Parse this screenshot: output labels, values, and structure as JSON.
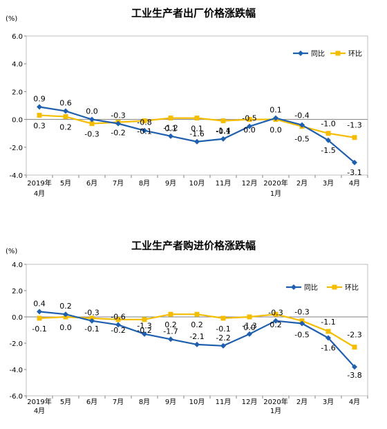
{
  "chart_data": [
    {
      "type": "line",
      "title": "工业生产者出厂价格涨跌幅",
      "unit": "(%)",
      "ylim": [
        -4.0,
        6.0
      ],
      "yticks": [
        "6.0",
        "4.0",
        "2.0",
        "0.0",
        "-2.0",
        "-4.0"
      ],
      "categories": [
        [
          "2019年",
          "4月"
        ],
        [
          "5月"
        ],
        [
          "6月"
        ],
        [
          "7月"
        ],
        [
          "8月"
        ],
        [
          "9月"
        ],
        [
          "10月"
        ],
        [
          "11月"
        ],
        [
          "12月"
        ],
        [
          "2020年",
          "1月"
        ],
        [
          "2月"
        ],
        [
          "3月"
        ],
        [
          "4月"
        ]
      ],
      "legend_position": "top-right",
      "series": [
        {
          "name": "同比",
          "color": "#1F5FAF",
          "values": [
            0.9,
            0.6,
            0.0,
            -0.3,
            -0.8,
            -1.2,
            -1.6,
            -1.4,
            -0.5,
            0.1,
            -0.4,
            -1.5,
            -3.1
          ],
          "labels": [
            "0.9",
            "0.6",
            "0.0",
            "-0.3",
            "-0.8",
            "-1.2",
            "-1.6",
            "-1.4",
            "-0.5",
            "0.1",
            "-0.4",
            "-1.5",
            "-3.1"
          ]
        },
        {
          "name": "环比",
          "color": "#F5BD00",
          "values": [
            0.3,
            0.2,
            -0.3,
            -0.2,
            -0.1,
            0.1,
            0.1,
            -0.1,
            0.0,
            0.0,
            -0.5,
            -1.0,
            -1.3
          ],
          "labels": [
            "0.3",
            "0.2",
            "-0.3",
            "-0.2",
            "-0.1",
            "0.1",
            "0.1",
            "-0.1",
            "0.0",
            "0.0",
            "-0.5",
            "-1.0",
            "-1.3"
          ]
        }
      ]
    },
    {
      "type": "line",
      "title": "工业生产者购进价格涨跌幅",
      "unit": "(%)",
      "ylim": [
        -6.0,
        4.0
      ],
      "yticks": [
        "4.0",
        "2.0",
        "0.0",
        "-2.0",
        "-4.0",
        "-6.0"
      ],
      "categories": [
        [
          "2019年",
          "4月"
        ],
        [
          "5月"
        ],
        [
          "6月"
        ],
        [
          "7月"
        ],
        [
          "8月"
        ],
        [
          "9月"
        ],
        [
          "10月"
        ],
        [
          "11月"
        ],
        [
          "12月"
        ],
        [
          "2020年",
          "1月"
        ],
        [
          "2月"
        ],
        [
          "3月"
        ],
        [
          "4月"
        ]
      ],
      "legend_position": "top-right",
      "series": [
        {
          "name": "同比",
          "color": "#1F5FAF",
          "values": [
            0.4,
            0.2,
            -0.3,
            -0.6,
            -1.3,
            -1.7,
            -2.1,
            -2.2,
            -1.3,
            -0.3,
            -0.5,
            -1.6,
            -3.8
          ],
          "labels": [
            "0.4",
            "0.2",
            "-0.3",
            "-0.6",
            "-1.3",
            "-1.7",
            "-2.1",
            "-2.2",
            "-1.3",
            "-0.3",
            "-0.5",
            "-1.6",
            "-3.8"
          ]
        },
        {
          "name": "环比",
          "color": "#F5BD00",
          "values": [
            -0.1,
            0.0,
            -0.1,
            -0.2,
            -0.2,
            0.2,
            0.2,
            -0.1,
            0.0,
            0.2,
            -0.3,
            -1.1,
            -2.3
          ],
          "labels": [
            "-0.1",
            "0.0",
            "-0.1",
            "-0.2",
            "-0.2",
            "0.2",
            "0.2",
            "-0.1",
            "0.0",
            "0.2",
            "-0.3",
            "-1.1",
            "-2.3"
          ]
        }
      ]
    }
  ]
}
